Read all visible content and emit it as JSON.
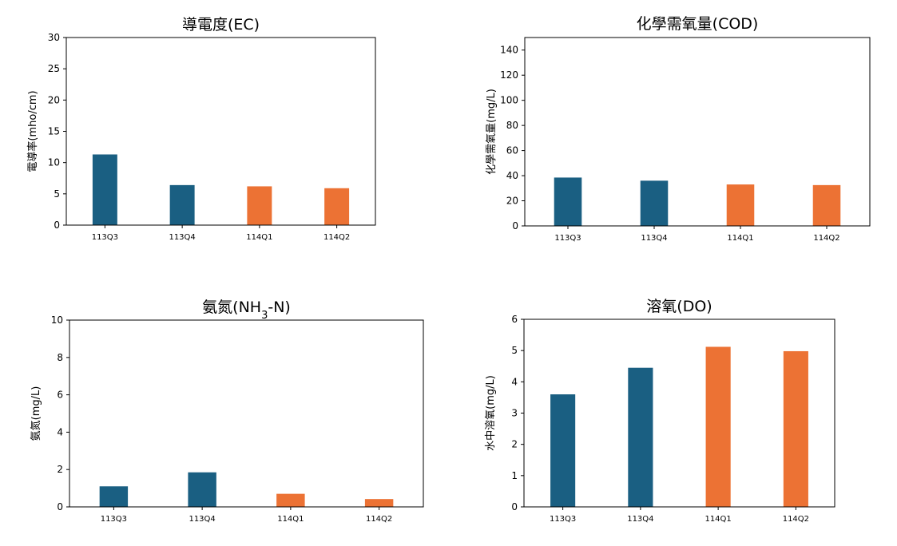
{
  "colors": {
    "past": "#1a5f82",
    "current": "#ec7234"
  },
  "chart_data": [
    {
      "type": "bar",
      "title": "導電度(EC)",
      "ylabel": "電導率(mho/cm)",
      "categories": [
        "113Q3",
        "113Q4",
        "114Q1",
        "114Q2"
      ],
      "values": [
        11.3,
        6.4,
        6.2,
        5.9
      ],
      "bar_colors": [
        "past",
        "past",
        "current",
        "current"
      ],
      "ylim": [
        0,
        30
      ],
      "yticks": [
        0,
        5,
        10,
        15,
        20,
        25,
        30
      ],
      "grid": false,
      "legend": "none"
    },
    {
      "type": "bar",
      "title": "化學需氧量(COD)",
      "ylabel": "化學需氧量(mg/L)",
      "categories": [
        "113Q3",
        "113Q4",
        "114Q1",
        "114Q2"
      ],
      "values": [
        38.5,
        36.0,
        33.0,
        32.5
      ],
      "bar_colors": [
        "past",
        "past",
        "current",
        "current"
      ],
      "ylim": [
        0,
        150
      ],
      "yticks": [
        0,
        20,
        40,
        60,
        80,
        100,
        120,
        140
      ],
      "grid": false,
      "legend": "none"
    },
    {
      "type": "bar",
      "title_parts": [
        "氨氮(NH",
        "3",
        "-N)"
      ],
      "ylabel": "氨氮(mg/L)",
      "categories": [
        "113Q3",
        "113Q4",
        "114Q1",
        "114Q2"
      ],
      "values": [
        1.1,
        1.85,
        0.7,
        0.42
      ],
      "bar_colors": [
        "past",
        "past",
        "current",
        "current"
      ],
      "ylim": [
        0,
        10
      ],
      "yticks": [
        0,
        2,
        4,
        6,
        8,
        10
      ],
      "grid": false,
      "legend": "none"
    },
    {
      "type": "bar",
      "title": "溶氧(DO)",
      "ylabel": "水中溶氧(mg/L)",
      "categories": [
        "113Q3",
        "113Q4",
        "114Q1",
        "114Q2"
      ],
      "values": [
        3.6,
        4.45,
        5.12,
        4.98
      ],
      "bar_colors": [
        "past",
        "past",
        "current",
        "current"
      ],
      "ylim": [
        0,
        6
      ],
      "yticks": [
        0,
        1,
        2,
        3,
        4,
        5,
        6
      ],
      "grid": false,
      "legend": "none"
    }
  ]
}
